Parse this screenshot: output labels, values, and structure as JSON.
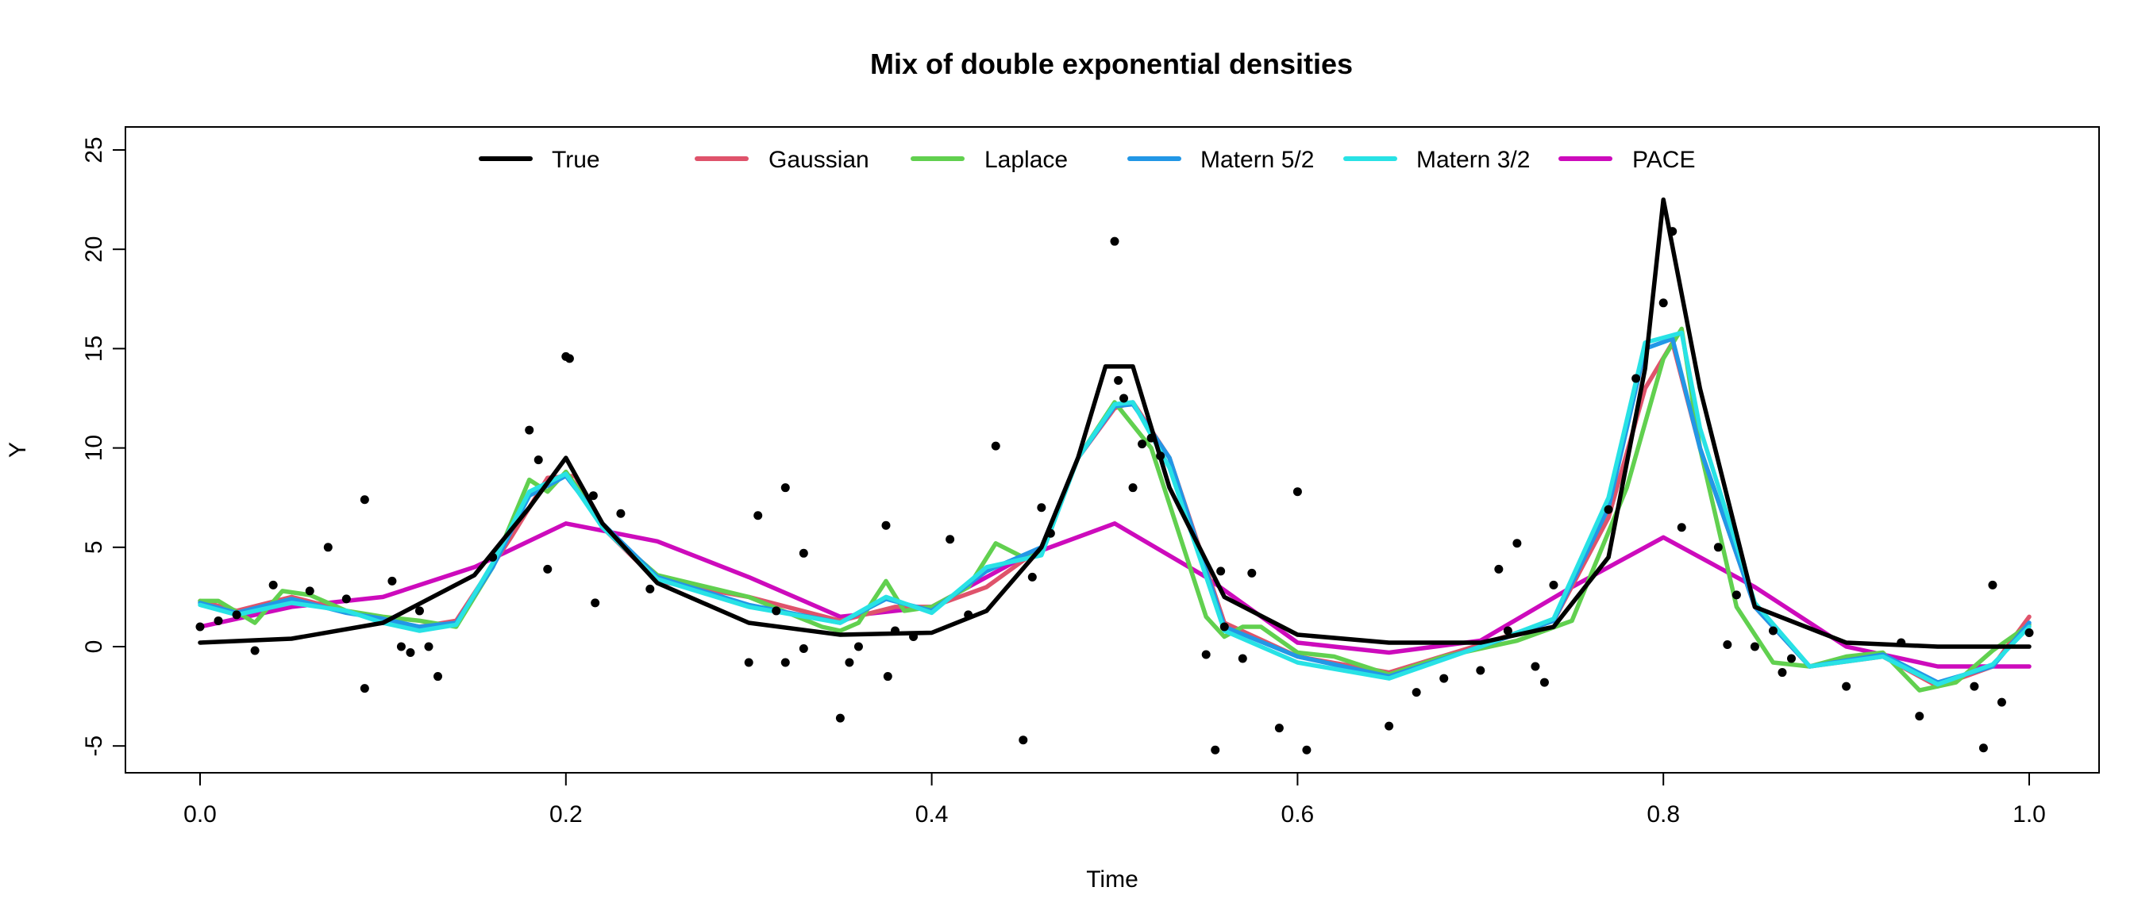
{
  "chart_data": {
    "type": "line",
    "title": "Mix of double exponential densities",
    "xlabel": "Time",
    "ylabel": "Y",
    "xlim": [
      0.0,
      1.0
    ],
    "ylim": [
      -5,
      25
    ],
    "x_ticks": [
      "0.0",
      "0.2",
      "0.4",
      "0.6",
      "0.8",
      "1.0"
    ],
    "y_ticks": [
      "-5",
      "0",
      "5",
      "10",
      "15",
      "20",
      "25"
    ],
    "grid": false,
    "legend_position": "top",
    "series": [
      {
        "name": "True",
        "color": "#000000",
        "x": [
          0.0,
          0.05,
          0.1,
          0.15,
          0.18,
          0.2,
          0.22,
          0.25,
          0.3,
          0.35,
          0.4,
          0.43,
          0.46,
          0.48,
          0.495,
          0.51,
          0.53,
          0.56,
          0.6,
          0.65,
          0.7,
          0.74,
          0.77,
          0.79,
          0.8,
          0.82,
          0.85,
          0.9,
          0.95,
          1.0
        ],
        "y": [
          0.2,
          0.4,
          1.2,
          3.6,
          7.0,
          9.5,
          6.2,
          3.2,
          1.2,
          0.6,
          0.7,
          1.8,
          5.0,
          9.5,
          14.1,
          14.1,
          8.0,
          2.5,
          0.6,
          0.2,
          0.2,
          1.0,
          4.5,
          14.0,
          22.5,
          13.0,
          2.0,
          0.2,
          0.0,
          0.0
        ]
      },
      {
        "name": "Gaussian",
        "color": "#df536b",
        "x": [
          0.0,
          0.02,
          0.05,
          0.08,
          0.1,
          0.12,
          0.14,
          0.17,
          0.19,
          0.205,
          0.22,
          0.25,
          0.3,
          0.35,
          0.38,
          0.4,
          0.43,
          0.46,
          0.48,
          0.5,
          0.51,
          0.53,
          0.56,
          0.6,
          0.65,
          0.7,
          0.74,
          0.77,
          0.79,
          0.805,
          0.82,
          0.85,
          0.88,
          0.92,
          0.95,
          0.98,
          1.0
        ],
        "y": [
          2.3,
          1.8,
          2.5,
          1.8,
          1.3,
          1.0,
          1.3,
          5.5,
          8.5,
          8.6,
          6.0,
          3.3,
          2.5,
          1.3,
          2.0,
          2.0,
          3.0,
          5.0,
          9.5,
          12.0,
          12.3,
          9.5,
          1.2,
          -0.5,
          -1.3,
          0.1,
          1.3,
          6.5,
          13.0,
          15.3,
          10.0,
          2.0,
          -1.0,
          -0.5,
          -2.0,
          -1.0,
          1.5
        ]
      },
      {
        "name": "Laplace",
        "color": "#61d04f",
        "x": [
          0.0,
          0.01,
          0.03,
          0.045,
          0.06,
          0.08,
          0.1,
          0.12,
          0.14,
          0.16,
          0.18,
          0.19,
          0.2,
          0.21,
          0.22,
          0.25,
          0.3,
          0.34,
          0.35,
          0.36,
          0.375,
          0.385,
          0.4,
          0.42,
          0.435,
          0.45,
          0.46,
          0.48,
          0.5,
          0.52,
          0.55,
          0.56,
          0.57,
          0.58,
          0.6,
          0.62,
          0.65,
          0.68,
          0.72,
          0.75,
          0.78,
          0.8,
          0.81,
          0.82,
          0.84,
          0.86,
          0.88,
          0.9,
          0.92,
          0.94,
          0.96,
          0.98,
          1.0
        ],
        "y": [
          2.3,
          2.3,
          1.2,
          2.8,
          2.6,
          1.8,
          1.5,
          1.3,
          1.0,
          4.0,
          8.4,
          7.8,
          8.8,
          7.5,
          6.0,
          3.6,
          2.5,
          1.0,
          0.8,
          1.2,
          3.3,
          1.8,
          2.0,
          3.0,
          5.2,
          4.5,
          4.8,
          9.5,
          12.3,
          10.0,
          1.5,
          0.5,
          1.0,
          1.0,
          -0.3,
          -0.5,
          -1.4,
          -0.5,
          0.3,
          1.3,
          8.0,
          14.5,
          16.0,
          10.0,
          2.0,
          -0.8,
          -1.0,
          -0.5,
          -0.3,
          -2.2,
          -1.8,
          -0.2,
          1.1
        ]
      },
      {
        "name": "Matern 5/2",
        "color": "#2297e6",
        "x": [
          0.0,
          0.02,
          0.05,
          0.08,
          0.1,
          0.12,
          0.14,
          0.16,
          0.18,
          0.2,
          0.22,
          0.25,
          0.3,
          0.35,
          0.375,
          0.4,
          0.43,
          0.46,
          0.48,
          0.5,
          0.51,
          0.53,
          0.56,
          0.6,
          0.65,
          0.7,
          0.74,
          0.77,
          0.79,
          0.805,
          0.82,
          0.85,
          0.88,
          0.92,
          0.95,
          0.98,
          1.0
        ],
        "y": [
          2.2,
          1.7,
          2.4,
          1.7,
          1.4,
          1.0,
          1.2,
          4.0,
          7.6,
          8.6,
          6.2,
          3.5,
          2.1,
          1.2,
          2.4,
          1.8,
          3.8,
          5.0,
          9.5,
          12.1,
          12.2,
          9.5,
          1.0,
          -0.5,
          -1.5,
          0.0,
          1.3,
          7.0,
          15.0,
          15.5,
          10.0,
          2.0,
          -1.0,
          -0.4,
          -1.8,
          -1.0,
          1.2
        ]
      },
      {
        "name": "Matern 3/2",
        "color": "#28e2e5",
        "x": [
          0.0,
          0.02,
          0.05,
          0.08,
          0.1,
          0.12,
          0.14,
          0.16,
          0.18,
          0.2,
          0.22,
          0.25,
          0.3,
          0.35,
          0.375,
          0.4,
          0.43,
          0.46,
          0.48,
          0.5,
          0.51,
          0.53,
          0.56,
          0.6,
          0.65,
          0.7,
          0.74,
          0.77,
          0.79,
          0.81,
          0.82,
          0.85,
          0.88,
          0.92,
          0.95,
          0.98,
          1.0
        ],
        "y": [
          2.1,
          1.6,
          2.2,
          1.8,
          1.2,
          0.8,
          1.1,
          4.2,
          7.8,
          8.7,
          6.0,
          3.4,
          2.0,
          1.2,
          2.5,
          1.7,
          4.0,
          4.6,
          9.5,
          12.2,
          12.3,
          9.0,
          0.8,
          -0.8,
          -1.6,
          0.0,
          1.4,
          7.5,
          15.3,
          15.8,
          11.0,
          2.2,
          -1.0,
          -0.5,
          -1.9,
          -0.9,
          1.0
        ]
      },
      {
        "name": "PACE",
        "color": "#cd0bbc",
        "x": [
          0.0,
          0.05,
          0.1,
          0.15,
          0.2,
          0.25,
          0.3,
          0.35,
          0.4,
          0.45,
          0.5,
          0.55,
          0.6,
          0.65,
          0.7,
          0.75,
          0.8,
          0.85,
          0.9,
          0.95,
          1.0
        ],
        "y": [
          1.0,
          2.0,
          2.5,
          4.0,
          6.2,
          5.3,
          3.5,
          1.5,
          2.0,
          4.5,
          6.2,
          3.5,
          0.2,
          -0.3,
          0.3,
          3.0,
          5.5,
          3.0,
          0.0,
          -1.0,
          -1.0
        ]
      }
    ],
    "scatter_points": {
      "x": [
        0.0,
        0.01,
        0.02,
        0.03,
        0.04,
        0.06,
        0.07,
        0.08,
        0.09,
        0.09,
        0.105,
        0.11,
        0.115,
        0.12,
        0.125,
        0.13,
        0.16,
        0.18,
        0.185,
        0.19,
        0.2,
        0.202,
        0.215,
        0.216,
        0.23,
        0.246,
        0.3,
        0.305,
        0.315,
        0.32,
        0.32,
        0.33,
        0.33,
        0.35,
        0.355,
        0.36,
        0.375,
        0.376,
        0.38,
        0.39,
        0.41,
        0.42,
        0.435,
        0.45,
        0.455,
        0.46,
        0.465,
        0.5,
        0.502,
        0.505,
        0.51,
        0.515,
        0.52,
        0.525,
        0.55,
        0.555,
        0.558,
        0.56,
        0.57,
        0.575,
        0.59,
        0.6,
        0.605,
        0.65,
        0.665,
        0.68,
        0.7,
        0.71,
        0.715,
        0.72,
        0.73,
        0.735,
        0.74,
        0.77,
        0.785,
        0.8,
        0.805,
        0.81,
        0.83,
        0.835,
        0.84,
        0.85,
        0.86,
        0.865,
        0.87,
        0.9,
        0.93,
        0.94,
        0.97,
        0.975,
        0.98,
        0.985,
        1.0
      ],
      "y": [
        1.0,
        1.3,
        1.6,
        -0.2,
        3.1,
        2.8,
        5.0,
        2.4,
        7.4,
        -2.1,
        3.3,
        0.0,
        -0.3,
        1.8,
        0.0,
        -1.5,
        4.5,
        10.9,
        9.4,
        3.9,
        14.6,
        14.5,
        7.6,
        2.2,
        6.7,
        2.9,
        -0.8,
        6.6,
        1.8,
        -0.8,
        8.0,
        4.7,
        -0.1,
        -3.6,
        -0.8,
        0.0,
        6.1,
        -1.5,
        0.8,
        0.5,
        5.4,
        1.6,
        10.1,
        -4.7,
        3.5,
        7.0,
        5.7,
        20.4,
        13.4,
        12.5,
        8.0,
        10.2,
        10.5,
        9.6,
        -0.4,
        -5.2,
        3.8,
        1.0,
        -0.6,
        3.7,
        -4.1,
        7.8,
        -5.2,
        -4.0,
        -2.3,
        -1.6,
        -1.2,
        3.9,
        0.8,
        5.2,
        -1.0,
        -1.8,
        3.1,
        6.9,
        13.5,
        17.3,
        20.9,
        6.0,
        5.0,
        0.1,
        2.6,
        0.0,
        0.8,
        -1.3,
        -0.6,
        -2.0,
        0.2,
        -3.5,
        -2.0,
        -5.1,
        3.1,
        -2.8,
        0.7
      ]
    }
  }
}
